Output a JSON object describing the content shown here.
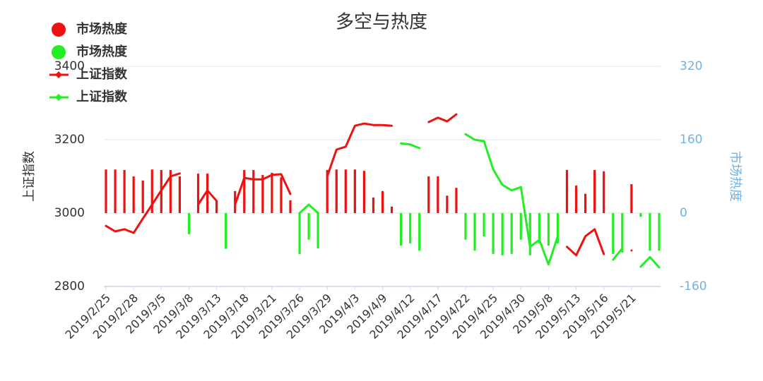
{
  "chart_data": {
    "type": "combo",
    "title": "多空与热度",
    "y_label": "上证指数",
    "y2_label": "市场热度",
    "ylim": [
      2800,
      3400
    ],
    "yticks": [
      2800,
      3000,
      3200,
      3400
    ],
    "y2lim": [
      -160,
      320
    ],
    "y2ticks": [
      -160,
      0,
      160,
      320
    ],
    "grid": true,
    "legend": "top-left",
    "categories": [
      "2019/2/25",
      null,
      null,
      "2019/2/28",
      null,
      null,
      "2019/3/5",
      null,
      null,
      "2019/3/8",
      null,
      null,
      "2019/3/13",
      null,
      null,
      "2019/3/18",
      null,
      null,
      "2019/3/21",
      null,
      null,
      "2019/3/26",
      null,
      null,
      "2019/3/29",
      null,
      null,
      "2019/4/3",
      null,
      null,
      "2019/4/9",
      null,
      null,
      "2019/4/12",
      null,
      null,
      "2019/4/17",
      null,
      null,
      "2019/4/22",
      null,
      null,
      "2019/4/25",
      null,
      null,
      "2019/4/30",
      null,
      null,
      "2019/5/8",
      null,
      null,
      "2019/5/13",
      null,
      null,
      "2019/5/16",
      null,
      null,
      "2019/5/21",
      null,
      null,
      null
    ],
    "series": [
      {
        "name": "市场热度",
        "type": "bar",
        "axis": "y2",
        "color": "#ee1111",
        "values": [
          95,
          95,
          94,
          80,
          71,
          95,
          94,
          94,
          80,
          null,
          86,
          86,
          26,
          null,
          48,
          94,
          94,
          83,
          88,
          78,
          28,
          null,
          null,
          null,
          94,
          95,
          95,
          95,
          92,
          34,
          48,
          14,
          null,
          null,
          null,
          80,
          80,
          38,
          55,
          null,
          null,
          null,
          null,
          null,
          null,
          null,
          null,
          null,
          null,
          null,
          94,
          60,
          42,
          94,
          91,
          null,
          null,
          63,
          null,
          null,
          null
        ]
      },
      {
        "name": "市场热度",
        "type": "bar",
        "axis": "y2",
        "color": "#22ee22",
        "values": [
          null,
          null,
          null,
          null,
          null,
          null,
          null,
          null,
          null,
          -46,
          null,
          null,
          null,
          -78,
          null,
          null,
          null,
          null,
          null,
          null,
          null,
          -89,
          -58,
          -77,
          null,
          null,
          null,
          null,
          null,
          null,
          null,
          null,
          -71,
          -66,
          -82,
          null,
          null,
          null,
          null,
          -58,
          -82,
          -51,
          -89,
          -92,
          -89,
          -58,
          -92,
          -66,
          -71,
          -66,
          null,
          null,
          null,
          null,
          null,
          -89,
          -86,
          null,
          -8,
          -82,
          -82
        ]
      },
      {
        "name": "上证指数",
        "type": "line",
        "color": "#ee1111",
        "values": [
          2965,
          2950,
          2956,
          2946,
          2985,
          3023,
          3062,
          3100,
          3108,
          null,
          3023,
          3062,
          3033,
          null,
          3023,
          3096,
          3092,
          3092,
          3104,
          3106,
          3052,
          null,
          null,
          null,
          3100,
          3173,
          3181,
          3238,
          3244,
          3240,
          3240,
          3238,
          null,
          null,
          null,
          3248,
          3260,
          3250,
          3269,
          null,
          null,
          null,
          null,
          null,
          null,
          null,
          null,
          null,
          null,
          null,
          2908,
          2885,
          2937,
          2956,
          2888,
          null,
          null,
          2898,
          null,
          null,
          null
        ]
      },
      {
        "name": "上证指数",
        "type": "line",
        "color": "#22ee22",
        "values": [
          null,
          null,
          null,
          null,
          null,
          null,
          null,
          null,
          null,
          2973,
          null,
          null,
          null,
          2994,
          null,
          null,
          null,
          null,
          null,
          null,
          null,
          3000,
          3023,
          3000,
          null,
          null,
          null,
          null,
          null,
          null,
          null,
          null,
          3190,
          3187,
          3177,
          null,
          null,
          null,
          null,
          3215,
          3200,
          3196,
          3119,
          3077,
          3062,
          3071,
          2908,
          2927,
          2860,
          2937,
          null,
          null,
          null,
          null,
          null,
          2873,
          2904,
          null,
          2854,
          2880,
          2852
        ]
      }
    ]
  }
}
